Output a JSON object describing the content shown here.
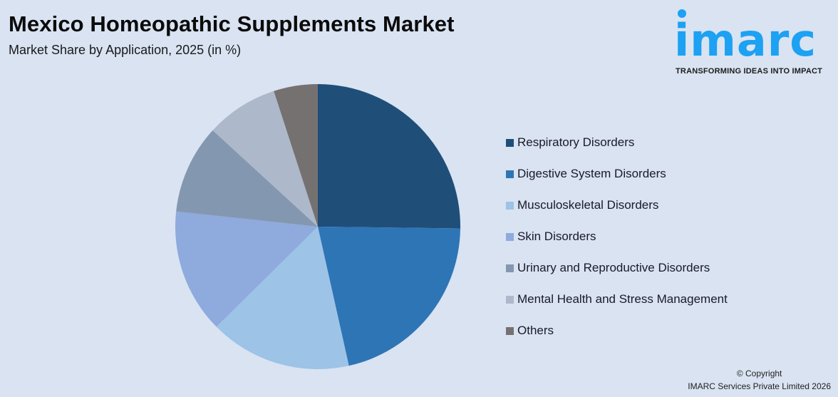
{
  "header": {
    "title": "Mexico Homeopathic Supplements Market",
    "subtitle": "Market Share by Application, 2025 (in %)"
  },
  "logo": {
    "word": "imarc",
    "tagline": "TRANSFORMING IDEAS INTO IMPACT",
    "color": "#1da1f2"
  },
  "footer": {
    "line1": "© Copyright",
    "line2": "IMARC Services Private Limited 2026"
  },
  "chart_data": {
    "type": "pie",
    "title": "Mexico Homeopathic Supplements Market",
    "subtitle": "Market Share by Application, 2025 (in %)",
    "categories": [
      "Respiratory Disorders",
      "Digestive System Disorders",
      "Musculoskeletal Disorders",
      "Skin Disorders",
      "Urinary and Reproductive Disorders",
      "Mental Health and Stress Management",
      "Others"
    ],
    "values": [
      25.2,
      21.3,
      16.1,
      14.1,
      10.1,
      8.2,
      5.0
    ],
    "colors": [
      "#1f4e79",
      "#2e75b6",
      "#9dc3e6",
      "#8faadc",
      "#8497b0",
      "#adb9ca",
      "#767171"
    ],
    "start_angle_deg": 0,
    "direction": "clockwise",
    "data_labels": false,
    "legend_position": "right"
  }
}
